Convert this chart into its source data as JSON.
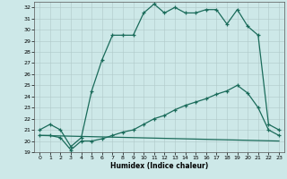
{
  "xlabel": "Humidex (Indice chaleur)",
  "bg_color": "#cde8e8",
  "grid_color": "#b0c8c8",
  "line_color": "#1a6b5a",
  "xlim": [
    -0.5,
    23.5
  ],
  "ylim": [
    19,
    32.5
  ],
  "yticks": [
    19,
    20,
    21,
    22,
    23,
    24,
    25,
    26,
    27,
    28,
    29,
    30,
    31,
    32
  ],
  "xticks": [
    0,
    1,
    2,
    3,
    4,
    5,
    6,
    7,
    8,
    9,
    10,
    11,
    12,
    13,
    14,
    15,
    16,
    17,
    18,
    19,
    20,
    21,
    22,
    23
  ],
  "curve1_x": [
    0,
    1,
    2,
    3,
    4,
    5,
    6,
    7,
    8,
    9,
    10,
    11,
    12,
    13,
    14,
    15,
    16,
    17,
    18,
    19,
    20,
    21,
    22,
    23
  ],
  "curve1_y": [
    21.0,
    21.5,
    21.0,
    19.5,
    20.3,
    24.5,
    27.3,
    29.5,
    29.5,
    29.5,
    31.5,
    32.3,
    31.5,
    32.0,
    31.5,
    31.5,
    31.8,
    31.8,
    30.5,
    31.8,
    30.3,
    29.5,
    21.5,
    21.0
  ],
  "curve2_x": [
    0,
    3,
    23
  ],
  "curve2_y": [
    20.5,
    19.2,
    20.2
  ],
  "curve3_x": [
    0,
    1,
    2,
    3,
    4,
    5,
    6,
    7,
    8,
    9,
    10,
    11,
    12,
    13,
    14,
    15,
    16,
    17,
    18,
    19,
    20,
    21,
    22,
    23
  ],
  "curve3_y": [
    20.5,
    20.5,
    20.3,
    19.2,
    20.0,
    20.0,
    20.2,
    20.5,
    20.8,
    21.0,
    21.5,
    22.0,
    22.3,
    22.8,
    23.2,
    23.5,
    23.8,
    24.2,
    24.5,
    25.0,
    24.3,
    23.0,
    21.0,
    20.5
  ],
  "curve4_x": [
    0,
    23
  ],
  "curve4_y": [
    20.5,
    20.0
  ]
}
